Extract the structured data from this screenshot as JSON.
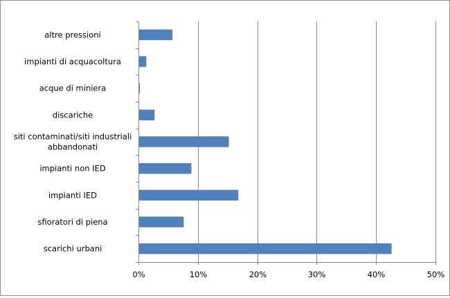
{
  "chart_data": {
    "type": "bar",
    "orientation": "horizontal",
    "title": "",
    "xlabel": "",
    "ylabel": "",
    "categories": [
      "altre pressioni",
      "impianti di acquacoltura",
      "acque di miniera",
      "discariche",
      "siti contaminati/siti industriali abbandonati",
      "impianti non IED",
      "impianti IED",
      "sfioratori di piena",
      "scarichi urbani"
    ],
    "category_lines": [
      [
        "altre pressioni"
      ],
      [
        "impianti di acquacoltura"
      ],
      [
        "acque di miniera"
      ],
      [
        "discariche"
      ],
      [
        "siti contaminati/siti industriali",
        "abbandonati"
      ],
      [
        "impianti non IED"
      ],
      [
        "impianti IED"
      ],
      [
        "sfioratori di piena"
      ],
      [
        "scarichi urbani"
      ]
    ],
    "values": [
      5.6,
      1.2,
      0.1,
      2.6,
      15.1,
      8.8,
      16.7,
      7.5,
      42.5
    ],
    "xlim": [
      0,
      50
    ],
    "xticks": [
      0,
      10,
      20,
      30,
      40,
      50
    ],
    "xtick_labels": [
      "0%",
      "10%",
      "20%",
      "30%",
      "40%",
      "50%"
    ],
    "grid": "vertical",
    "legend": "none",
    "bar_color": "#4f81bd"
  }
}
